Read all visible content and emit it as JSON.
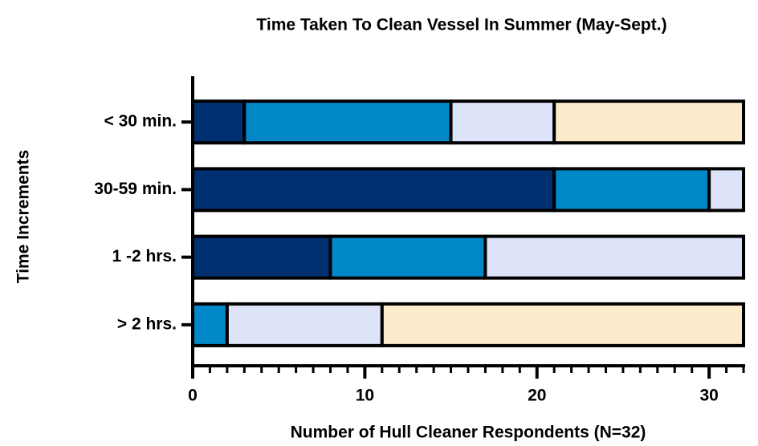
{
  "chart_data": {
    "type": "stacked_barh",
    "title": "Time Taken To Clean Vessel In Summer (May-Sept.)",
    "xlabel": "Number of Hull Cleaner Respondents  (N=32)",
    "ylabel": "Time Increments",
    "categories": [
      "< 30 min.",
      "30-59 min.",
      "1 -2 hrs.",
      "> 2 hrs."
    ],
    "series": [
      {
        "color": "#003070",
        "values": [
          3,
          21,
          8,
          0
        ]
      },
      {
        "color": "#0088c8",
        "values": [
          12,
          9,
          9,
          2
        ]
      },
      {
        "color": "#dde4fa",
        "values": [
          6,
          2,
          15,
          9
        ]
      },
      {
        "color": "#fdebcc",
        "values": [
          11,
          0,
          0,
          21
        ]
      }
    ],
    "xlim": [
      0,
      32
    ],
    "xticks": [
      0,
      10,
      20,
      30
    ],
    "xminorticks": [
      1,
      2,
      3,
      4,
      5,
      6,
      7,
      8,
      9,
      11,
      12,
      13,
      14,
      15,
      16,
      17,
      18,
      19,
      21,
      22,
      23,
      24,
      25,
      26,
      27,
      28,
      29,
      31,
      32
    ]
  }
}
